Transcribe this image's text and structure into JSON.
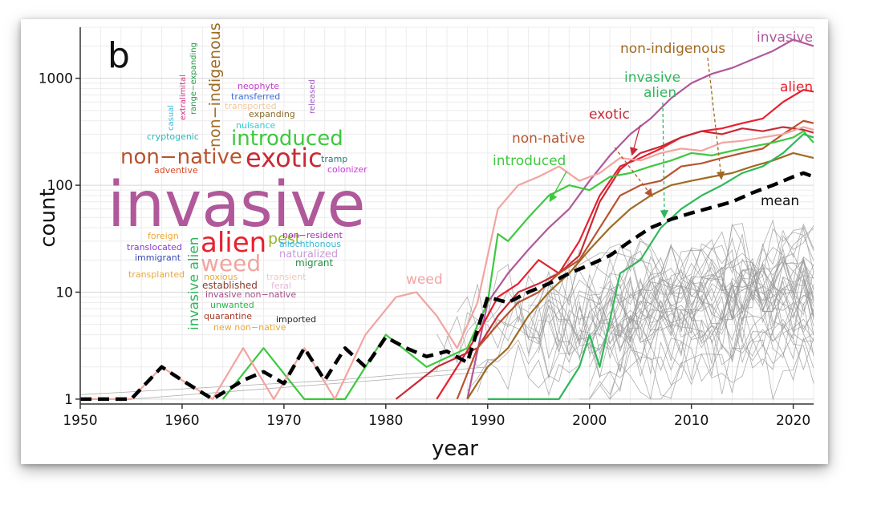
{
  "panel_label": "b",
  "chart_data": {
    "type": "line",
    "xlabel": "year",
    "ylabel": "count",
    "yscale": "log",
    "xlim": [
      1950,
      2022
    ],
    "ylim": [
      0.9,
      3000
    ],
    "xticks": [
      1950,
      1960,
      1970,
      1980,
      1990,
      2000,
      2010,
      2020
    ],
    "yticks": [
      1,
      10,
      100,
      1000
    ],
    "ytick_labels": [
      "1",
      "10",
      "100",
      "1000"
    ],
    "grid": true,
    "series": [
      {
        "name": "invasive",
        "color": "#b0589a",
        "x": [
          1988,
          1990,
          1992,
          1994,
          1996,
          1998,
          2000,
          2002,
          2004,
          2006,
          2008,
          2010,
          2012,
          2014,
          2016,
          2018,
          2020,
          2022
        ],
        "y": [
          1,
          8,
          15,
          25,
          40,
          60,
          110,
          190,
          300,
          420,
          650,
          900,
          1100,
          1250,
          1500,
          1800,
          2300,
          2000
        ]
      },
      {
        "name": "alien",
        "color": "#e8202e",
        "x": [
          1985,
          1987,
          1989,
          1991,
          1993,
          1995,
          1997,
          1999,
          2001,
          2003,
          2005,
          2007,
          2009,
          2011,
          2013,
          2015,
          2017,
          2019,
          2021,
          2022
        ],
        "y": [
          1,
          2,
          4,
          9,
          12,
          20,
          15,
          30,
          80,
          150,
          180,
          220,
          280,
          320,
          340,
          380,
          420,
          600,
          780,
          750
        ]
      },
      {
        "name": "exotic",
        "color": "#c82a36",
        "x": [
          1981,
          1985,
          1989,
          1991,
          1993,
          1995,
          1997,
          1999,
          2001,
          2003,
          2005,
          2007,
          2009,
          2011,
          2013,
          2015,
          2017,
          2019,
          2021,
          2022
        ],
        "y": [
          1,
          2,
          3,
          6,
          10,
          12,
          15,
          22,
          70,
          140,
          200,
          230,
          280,
          320,
          300,
          340,
          320,
          350,
          330,
          310
        ]
      },
      {
        "name": "non-native",
        "color": "#b8532e",
        "x": [
          1987,
          1989,
          1991,
          1993,
          1995,
          1997,
          1999,
          2001,
          2003,
          2005,
          2007,
          2009,
          2011,
          2013,
          2015,
          2017,
          2019,
          2021,
          2022
        ],
        "y": [
          1,
          3,
          5,
          8,
          10,
          15,
          20,
          40,
          80,
          100,
          110,
          150,
          160,
          180,
          200,
          220,
          300,
          400,
          380
        ]
      },
      {
        "name": "introduced",
        "color": "#3ec83e",
        "x": [
          1964,
          1968,
          1972,
          1976,
          1980,
          1984,
          1988,
          1990,
          1991,
          1992,
          1994,
          1996,
          1998,
          2000,
          2002,
          2004,
          2006,
          2008,
          2010,
          2012,
          2014,
          2016,
          2018,
          2020,
          2021,
          2022
        ],
        "y": [
          1,
          3,
          1,
          1,
          4,
          2,
          3,
          8,
          35,
          30,
          50,
          80,
          100,
          90,
          120,
          130,
          150,
          170,
          200,
          190,
          210,
          230,
          250,
          280,
          320,
          250
        ]
      },
      {
        "name": "non-indigenous",
        "color": "#a06a22",
        "x": [
          1988,
          1990,
          1992,
          1994,
          1996,
          1998,
          2000,
          2002,
          2004,
          2006,
          2008,
          2010,
          2012,
          2014,
          2016,
          2018,
          2020,
          2022
        ],
        "y": [
          1,
          2,
          3,
          6,
          10,
          15,
          25,
          40,
          60,
          80,
          100,
          110,
          120,
          130,
          150,
          170,
          200,
          180
        ]
      },
      {
        "name": "invasive alien",
        "color": "#2fb85c",
        "x": [
          1990,
          1997,
          1999,
          2000,
          2001,
          2003,
          2005,
          2007,
          2009,
          2011,
          2013,
          2015,
          2017,
          2019,
          2021,
          2022
        ],
        "y": [
          1,
          1,
          2,
          4,
          2,
          15,
          20,
          40,
          60,
          80,
          100,
          130,
          150,
          200,
          300,
          280
        ]
      },
      {
        "name": "weed",
        "color": "#f2a4a0",
        "x": [
          1950,
          1955,
          1958,
          1960,
          1963,
          1966,
          1969,
          1972,
          1975,
          1978,
          1981,
          1983,
          1985,
          1987,
          1989,
          1991,
          1993,
          1995,
          1997,
          1999,
          2001,
          2003,
          2005,
          2007,
          2009,
          2011,
          2013,
          2015,
          2017,
          2019,
          2021,
          2022
        ],
        "y": [
          1,
          1,
          2,
          1.5,
          1,
          3,
          1,
          3,
          1,
          4,
          9,
          10,
          6,
          3,
          8,
          60,
          100,
          120,
          150,
          110,
          130,
          180,
          170,
          200,
          220,
          210,
          250,
          260,
          280,
          300,
          350,
          330
        ]
      },
      {
        "name": "mean",
        "color": "#000000",
        "dashed": true,
        "x": [
          1950,
          1952,
          1955,
          1958,
          1960,
          1963,
          1966,
          1968,
          1970,
          1972,
          1974,
          1976,
          1978,
          1980,
          1982,
          1984,
          1986,
          1988,
          1990,
          1992,
          1994,
          1996,
          1998,
          2000,
          2002,
          2004,
          2006,
          2008,
          2010,
          2012,
          2014,
          2016,
          2018,
          2020,
          2021,
          2022
        ],
        "y": [
          1,
          1,
          1,
          2,
          1.5,
          1,
          1.5,
          1.8,
          1.4,
          3,
          1.5,
          3,
          2,
          3.8,
          3,
          2.5,
          2.8,
          2.2,
          9,
          8,
          10,
          12,
          15,
          18,
          22,
          30,
          40,
          48,
          55,
          62,
          70,
          85,
          100,
          120,
          130,
          120
        ]
      }
    ],
    "annotations": [
      {
        "text": "invasive",
        "color": "#b0589a"
      },
      {
        "text": "non-indigenous",
        "color": "#a06a22"
      },
      {
        "text": "alien",
        "color": "#e8202e"
      },
      {
        "text": "invasive",
        "color": "#2fb85c"
      },
      {
        "text": "alien",
        "color": "#2fb85c"
      },
      {
        "text": "exotic",
        "color": "#c82a36"
      },
      {
        "text": "non-native",
        "color": "#b8532e"
      },
      {
        "text": "introduced",
        "color": "#3ec83e"
      },
      {
        "text": "mean",
        "color": "#111111"
      },
      {
        "text": "weed",
        "color": "#f2a4a0"
      }
    ]
  },
  "word_cloud": [
    {
      "text": "invasive",
      "color": "#b0589a"
    },
    {
      "text": "alien",
      "color": "#e8202e"
    },
    {
      "text": "weed",
      "color": "#f2a4a0"
    },
    {
      "text": "exotic",
      "color": "#c82a36"
    },
    {
      "text": "non−native",
      "color": "#b8532e"
    },
    {
      "text": "introduced",
      "color": "#3ec83e"
    },
    {
      "text": "non−indigenous",
      "color": "#a06a22"
    },
    {
      "text": "invasive alien",
      "color": "#2fb85c"
    },
    {
      "text": "pest",
      "color": "#98b82a"
    },
    {
      "text": "neophyte",
      "color": "#c23ec8"
    },
    {
      "text": "transferred",
      "color": "#3a6ad8"
    },
    {
      "text": "transported",
      "color": "#f2c8a0"
    },
    {
      "text": "expanding",
      "color": "#8a6a2a"
    },
    {
      "text": "nuisance",
      "color": "#38c8d8"
    },
    {
      "text": "released",
      "color": "#a058c8"
    },
    {
      "text": "casual",
      "color": "#38b8d8"
    },
    {
      "text": "extralimital",
      "color": "#d83a8a"
    },
    {
      "text": "range−expanding",
      "color": "#2a9a4a"
    },
    {
      "text": "cryptogenic",
      "color": "#2ab8b8"
    },
    {
      "text": "tramp",
      "color": "#2a7a7a"
    },
    {
      "text": "adventive",
      "color": "#d84a2a"
    },
    {
      "text": "colonizer",
      "color": "#c83ad8"
    },
    {
      "text": "foreign",
      "color": "#e8a838"
    },
    {
      "text": "translocated",
      "color": "#8a3ad8"
    },
    {
      "text": "immigrant",
      "color": "#3a4ab8"
    },
    {
      "text": "transplanted",
      "color": "#e8a838"
    },
    {
      "text": "non−resident",
      "color": "#a82ab8"
    },
    {
      "text": "allochthonous",
      "color": "#38b8d8"
    },
    {
      "text": "naturalized",
      "color": "#c89ad8"
    },
    {
      "text": "migrant",
      "color": "#2a8a4a"
    },
    {
      "text": "noxious",
      "color": "#e8a838"
    },
    {
      "text": "transient",
      "color": "#f2c8b8"
    },
    {
      "text": "established",
      "color": "#8a3a2a"
    },
    {
      "text": "feral",
      "color": "#e8b8d8"
    },
    {
      "text": "invasive non−native",
      "color": "#a84a8a"
    },
    {
      "text": "unwanted",
      "color": "#2ab84a"
    },
    {
      "text": "quarantine",
      "color": "#a83a2a"
    },
    {
      "text": "imported",
      "color": "#222222"
    },
    {
      "text": "new non−native",
      "color": "#e8a838"
    }
  ]
}
